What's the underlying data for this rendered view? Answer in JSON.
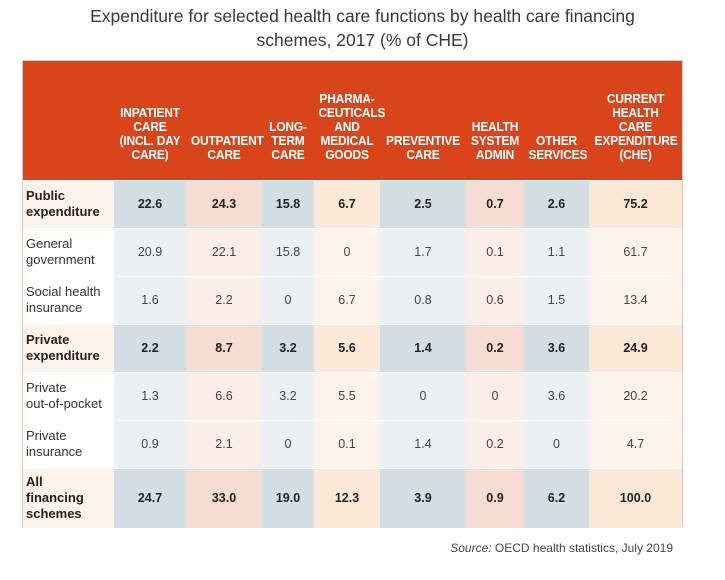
{
  "title_line1": "Expenditure for selected health care functions by health care financing",
  "title_line2": "schemes, 2017 (% of CHE)",
  "columns": [
    [
      "INPATIENT",
      "CARE",
      "(INCL. DAY",
      "CARE)"
    ],
    [
      "OUTPATIENT",
      "CARE"
    ],
    [
      "LONG-",
      "TERM",
      "CARE"
    ],
    [
      "PHARMA-",
      "CEUTICALS",
      "AND",
      "MEDICAL",
      "GOODS"
    ],
    [
      "PREVENTIVE",
      "CARE"
    ],
    [
      "HEALTH",
      "SYSTEM",
      "ADMIN"
    ],
    [
      "OTHER",
      "SERVICES"
    ],
    [
      "CURRENT",
      "HEALTH CARE",
      "EXPENDITURE",
      "(CHE)"
    ]
  ],
  "rows": [
    {
      "label": [
        "Public",
        "expenditure"
      ],
      "bold": true,
      "values": [
        "22.6",
        "24.3",
        "15.8",
        "6.7",
        "2.5",
        "0.7",
        "2.6",
        "75.2"
      ]
    },
    {
      "label": [
        "General",
        "government"
      ],
      "bold": false,
      "values": [
        "20.9",
        "22.1",
        "15.8",
        "0",
        "1.7",
        "0.1",
        "1.1",
        "61.7"
      ]
    },
    {
      "label": [
        "Social health",
        "insurance"
      ],
      "bold": false,
      "values": [
        "1.6",
        "2.2",
        "0",
        "6.7",
        "0.8",
        "0.6",
        "1.5",
        "13.4"
      ]
    },
    {
      "label": [
        "Private",
        "expenditure"
      ],
      "bold": true,
      "values": [
        "2.2",
        "8.7",
        "3.2",
        "5.6",
        "1.4",
        "0.2",
        "3.6",
        "24.9"
      ]
    },
    {
      "label": [
        "Private",
        "out-of-pocket"
      ],
      "bold": false,
      "values": [
        "1.3",
        "6.6",
        "3.2",
        "5.5",
        "0",
        "0",
        "3.6",
        "20.2"
      ]
    },
    {
      "label": [
        "Private",
        "insurance"
      ],
      "bold": false,
      "values": [
        "0.9",
        "2.1",
        "0",
        "0.1",
        "1.4",
        "0.2",
        "0",
        "4.7"
      ]
    },
    {
      "label": [
        "All",
        "financing",
        "schemes"
      ],
      "bold": true,
      "values": [
        "24.7",
        "33.0",
        "19.0",
        "12.3",
        "3.9",
        "0.9",
        "6.2",
        "100.0"
      ]
    }
  ],
  "source_label": "Source:",
  "source_text": " OECD health statistics, July 2019",
  "colors": {
    "header": "#d9441a",
    "blue": "#d3dee4",
    "pink": "#f6dcd2",
    "cream": "#fbe8d6"
  }
}
